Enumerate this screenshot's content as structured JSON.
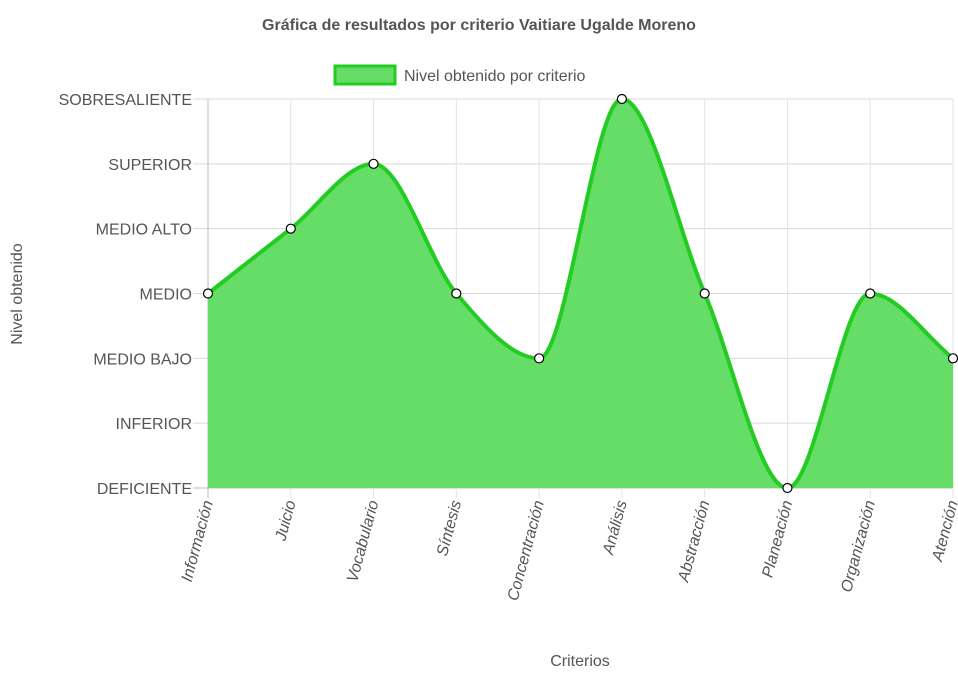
{
  "chart_data": {
    "type": "area",
    "title": "Gráfica de resultados por criterio Vaitiare Ugalde Moreno",
    "xlabel": "Criterios",
    "ylabel": "Nivel obtenido",
    "categories": [
      "Información",
      "Juicio",
      "Vocabulario",
      "Síntesis",
      "Concentración",
      "Análisis",
      "Abstracción",
      "Planeación",
      "Organización",
      "Atención"
    ],
    "y_levels": [
      "DEFICIENTE",
      "INFERIOR",
      "MEDIO BAJO",
      "MEDIO",
      "MEDIO ALTO",
      "SUPERIOR",
      "SOBRESALIENTE"
    ],
    "series": [
      {
        "name": "Nivel obtenido por criterio",
        "values": [
          3,
          4,
          5,
          3,
          2,
          6,
          3,
          0,
          3,
          2
        ],
        "value_labels": [
          "MEDIO",
          "MEDIO ALTO",
          "SUPERIOR",
          "MEDIO",
          "MEDIO BAJO",
          "SOBRESALIENTE",
          "MEDIO",
          "DEFICIENTE",
          "MEDIO",
          "MEDIO BAJO"
        ]
      }
    ],
    "ylim": [
      0,
      6
    ],
    "grid": true,
    "legend_position": "top",
    "colors": {
      "fill": "#66dd66",
      "line": "#22cc22",
      "grid": "#e6e6e6",
      "text": "#555555"
    }
  }
}
